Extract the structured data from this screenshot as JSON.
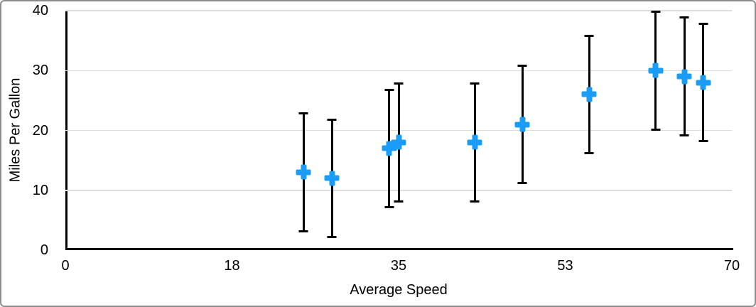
{
  "chart_data": {
    "type": "scatter",
    "title": "",
    "xlabel": "Average Speed",
    "ylabel": "Miles Per Gallon",
    "xlim": [
      0,
      70
    ],
    "ylim": [
      0,
      40
    ],
    "xticks": [
      {
        "pos": 0,
        "label": "0"
      },
      {
        "pos": 17.5,
        "label": "18"
      },
      {
        "pos": 35,
        "label": "35"
      },
      {
        "pos": 52.5,
        "label": "53"
      },
      {
        "pos": 70,
        "label": "70"
      }
    ],
    "yticks": [
      {
        "pos": 0,
        "label": "0"
      },
      {
        "pos": 10,
        "label": "10"
      },
      {
        "pos": 20,
        "label": "20"
      },
      {
        "pos": 30,
        "label": "30"
      },
      {
        "pos": 40,
        "label": "40"
      }
    ],
    "grid": "horizontal-only",
    "legend": "none",
    "series": [
      {
        "name": "Miles Per Gallon",
        "marker": "plus",
        "marker_color": "#1B9DF7",
        "error_bars": {
          "plus": 10,
          "minus": 10,
          "color": "#000000"
        },
        "points": [
          {
            "x": 25,
            "y": 13
          },
          {
            "x": 28,
            "y": 12
          },
          {
            "x": 34,
            "y": 17
          },
          {
            "x": 35,
            "y": 18
          },
          {
            "x": 43,
            "y": 18
          },
          {
            "x": 48,
            "y": 21
          },
          {
            "x": 55,
            "y": 26
          },
          {
            "x": 62,
            "y": 30
          },
          {
            "x": 65,
            "y": 29
          },
          {
            "x": 67,
            "y": 28
          }
        ]
      }
    ]
  },
  "colors": {
    "marker_blue": "#1B9DF7",
    "axis_black": "#000000",
    "gridline_gray": "#DCDCDC",
    "frame_border_gray": "#8C8C8C",
    "background": "#FFFFFF",
    "text": "#000000"
  }
}
